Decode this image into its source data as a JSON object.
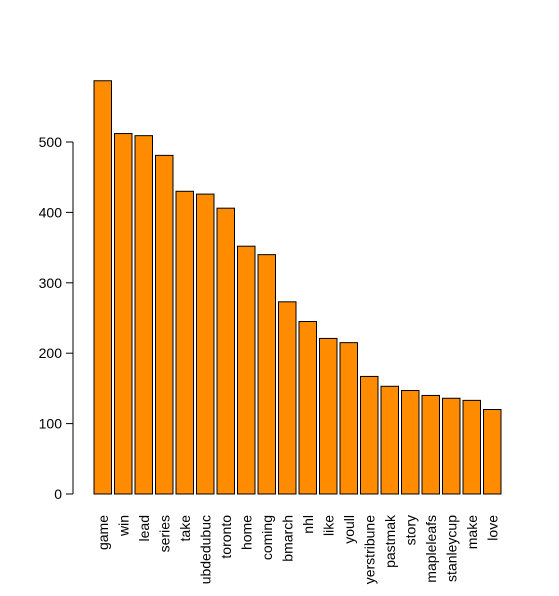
{
  "chart_data": {
    "type": "bar",
    "title": "",
    "xlabel": "",
    "ylabel": "",
    "categories": [
      "game",
      "win",
      "lead",
      "series",
      "take",
      "ubdedubuc",
      "toronto",
      "home",
      "coming",
      "bmarch",
      "nhl",
      "like",
      "youll",
      "yerstribune",
      "pastmak",
      "story",
      "mapleleafs",
      "stanleycup",
      "make",
      "love"
    ],
    "values": [
      587,
      512,
      509,
      481,
      430,
      426,
      406,
      352,
      340,
      273,
      245,
      221,
      215,
      167,
      153,
      147,
      140,
      136,
      133,
      120
    ],
    "yticks": [
      "0",
      "100",
      "200",
      "300",
      "400",
      "500"
    ],
    "ylim": [
      0,
      590
    ],
    "grid": false,
    "bar_color": "#FF8C00",
    "bar_stroke": "#000000"
  }
}
